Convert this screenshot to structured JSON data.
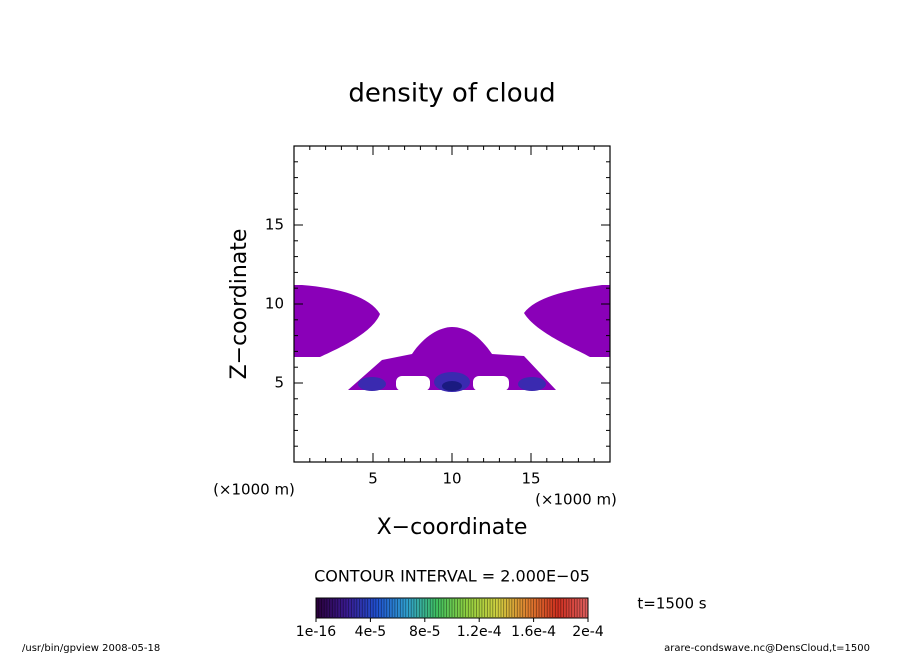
{
  "chart_data": {
    "type": "contour",
    "title": "density of cloud",
    "x_label": "X−coordinate",
    "y_label": "Z−coordinate",
    "x_unit": "(×1000 m)",
    "y_unit": "(×1000 m)",
    "xlim": [
      0,
      20
    ],
    "ylim": [
      0,
      20
    ],
    "xticks": [
      5,
      10,
      15
    ],
    "yticks": [
      5,
      10,
      15
    ],
    "fill_color": "#8a00b8",
    "contour_interval_label": "CONTOUR INTERVAL = 2.000E−05",
    "time_label": "t=1500 s",
    "colorbar": {
      "lim": [
        1e-16,
        0.0002
      ],
      "ticks": [
        {
          "value": 1e-16,
          "label": "1e-16"
        },
        {
          "value": 4e-05,
          "label": "4e-5"
        },
        {
          "value": 8e-05,
          "label": "8e-5"
        },
        {
          "value": 0.00012,
          "label": "1.2e-4"
        },
        {
          "value": 0.00016,
          "label": "1.6e-4"
        },
        {
          "value": 0.0002,
          "label": "2e-4"
        }
      ],
      "colors": [
        "#2a003a",
        "#3a1a90",
        "#2050d0",
        "#30a0d0",
        "#40c060",
        "#90d040",
        "#d0d040",
        "#e08030",
        "#d03020",
        "#e06060"
      ]
    },
    "footer_left": "/usr/bin/gpview   2008-05-18",
    "footer_right": "arare-condswave.nc@DensCloud,t=1500"
  }
}
